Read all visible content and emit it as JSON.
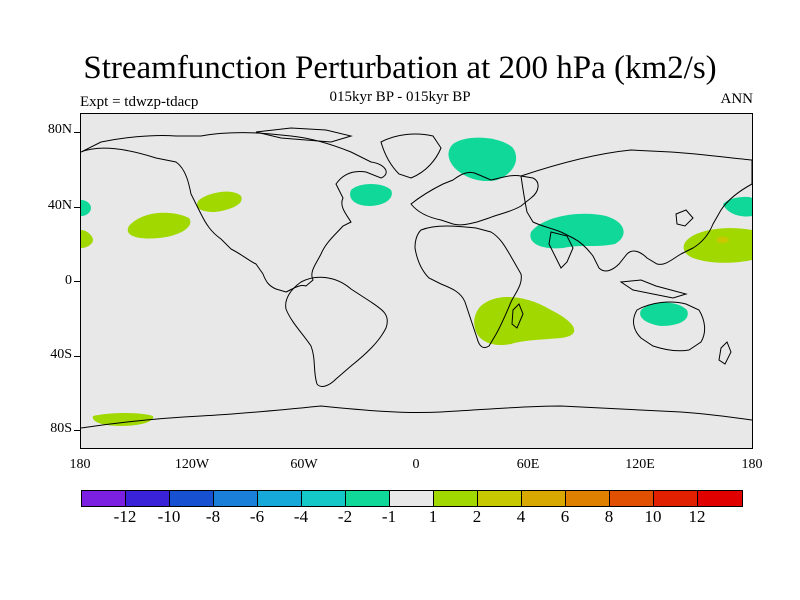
{
  "title": "Streamfunction Perturbation at 200 hPa (km2/s)",
  "subtitle_left": "Expt = tdwzp-tdacp",
  "subtitle_center": "015kyr BP - 015kyr BP",
  "subtitle_right": "ANN",
  "lat_labels": [
    "80N",
    "40N",
    "0",
    "40S",
    "80S"
  ],
  "lon_labels": [
    "180",
    "120W",
    "60W",
    "0",
    "60E",
    "120E",
    "180"
  ],
  "colorbar": {
    "colors": [
      "#7b1fe0",
      "#3a22d8",
      "#1750d0",
      "#1a7fd8",
      "#16a8d8",
      "#14c8c8",
      "#10d898",
      "#e8e8e8",
      "#a0d800",
      "#c8c800",
      "#d8a800",
      "#e08000",
      "#e05000",
      "#e02000",
      "#e00000"
    ],
    "labels": [
      "-12",
      "-10",
      "-8",
      "-6",
      "-4",
      "-2",
      "-1",
      "1",
      "2",
      "4",
      "6",
      "8",
      "10",
      "12"
    ]
  },
  "anomalies": [
    {
      "name": "greenland-sea-negative",
      "value": "-1",
      "color": "#10d898"
    },
    {
      "name": "north-atlantic-negative",
      "value": "-1",
      "color": "#10d898"
    },
    {
      "name": "central-asia-negative",
      "value": "-1",
      "color": "#10d898"
    },
    {
      "name": "west-pacific-negative",
      "value": "-1",
      "color": "#10d898"
    },
    {
      "name": "australia-negative",
      "value": "-1",
      "color": "#10d898"
    },
    {
      "name": "western-edge-negative",
      "value": "-1",
      "color": "#10d898"
    },
    {
      "name": "north-pacific-positive",
      "value": "1",
      "color": "#a0d800"
    },
    {
      "name": "subtropical-pacific-positive",
      "value": "1",
      "color": "#a0d800"
    },
    {
      "name": "west-pacific-positive",
      "value": "1",
      "color": "#a0d800"
    },
    {
      "name": "madagascar-positive",
      "value": "1",
      "color": "#a0d800"
    },
    {
      "name": "southern-ocean-positive",
      "value": "1",
      "color": "#a0d800"
    },
    {
      "name": "eastern-edge-positive",
      "value": "1",
      "color": "#a0d800"
    },
    {
      "name": "west-pacific-core",
      "value": "2",
      "color": "#c8c800"
    }
  ]
}
